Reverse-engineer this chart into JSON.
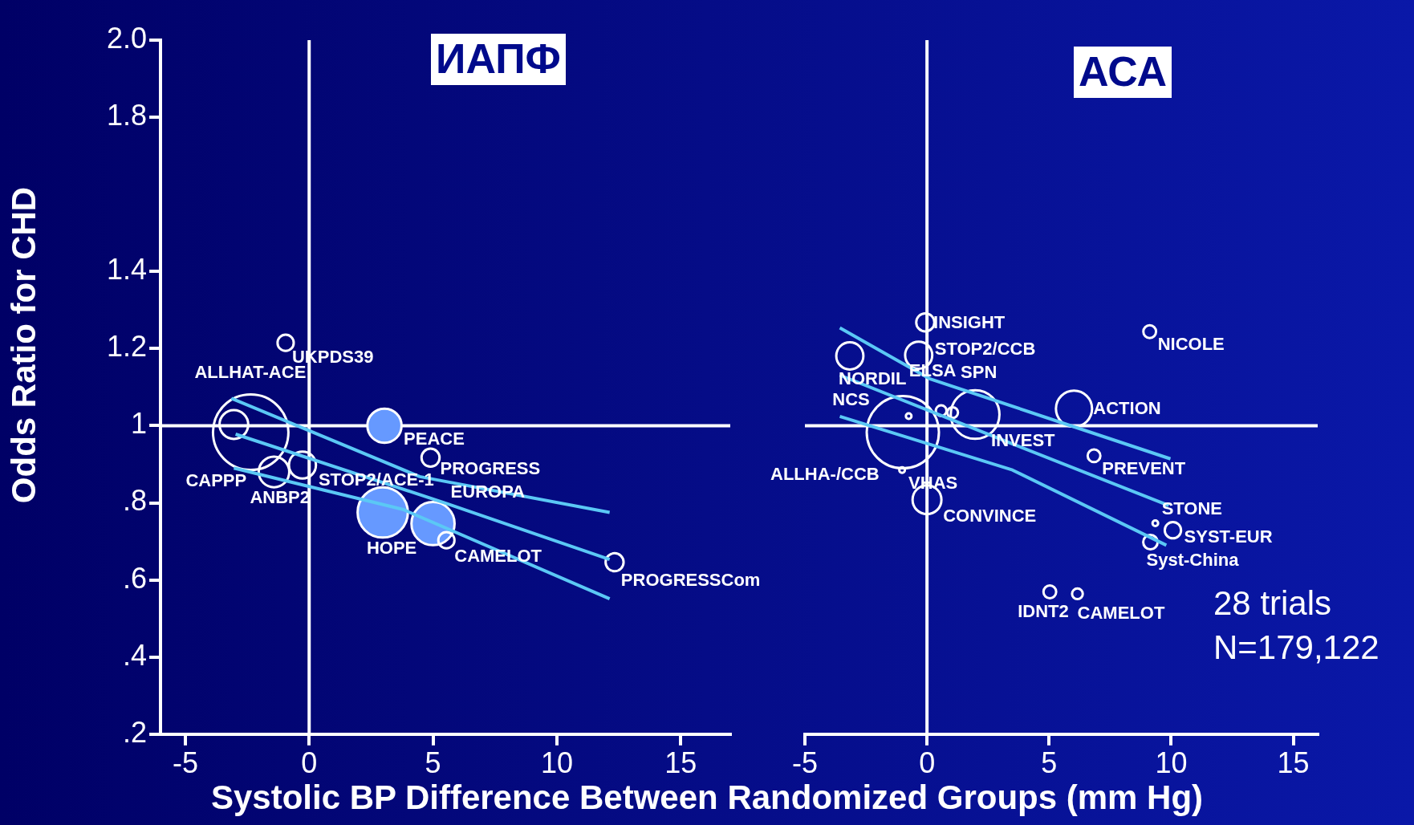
{
  "chart_data": [
    {
      "type": "bubble",
      "title": "ИАПФ",
      "xlabel": "Systolic BP Difference Between Randomized Groups (mm Hg)",
      "ylabel": "Odds Ratio for CHD",
      "xlim": [
        -6,
        17
      ],
      "xticks": [
        -5,
        0,
        5,
        10,
        15
      ],
      "ylim": [
        0.2,
        2.0
      ],
      "yticks": [
        {
          "value": 0.2,
          "label": ".2"
        },
        {
          "value": 0.4,
          "label": ".4"
        },
        {
          "value": 0.6,
          "label": ".6"
        },
        {
          "value": 0.8,
          "label": ".8"
        },
        1,
        1.2,
        1.4,
        1.8,
        {
          "value": 2.0,
          "label": "2.0"
        }
      ],
      "grid": false,
      "legend": false,
      "series": [
        {
          "color": "#ffffff",
          "x": [
            -0.95,
            -2.36,
            -3.04,
            -0.27,
            -1.42,
            4.9,
            5.54,
            12.33
          ],
          "values": [
            1.215,
            0.983,
            1.003,
            0.898,
            0.88,
            0.917,
            0.703,
            0.646
          ],
          "sizes": [
            0.046,
            1,
            0.145,
            0.128,
            0.164,
            0.057,
            0.046,
            0.057
          ]
        },
        {
          "color": "#6699ff",
          "x": [
            3.04,
            2.97,
            5.0
          ],
          "values": [
            1.0,
            0.775,
            0.746
          ],
          "sizes": [
            0.205,
            0.444,
            0.327
          ]
        },
        {
          "type": "line",
          "color": "#5bc8f5",
          "x": [
            -3.14,
            4.46,
            12.13
          ],
          "values": [
            1.071,
            0.868,
            0.775
          ]
        },
        {
          "type": "line",
          "color": "#5bc8f5",
          "x": [
            -2.97,
            5.47,
            12.13
          ],
          "values": [
            0.978,
            0.8,
            0.653
          ]
        },
        {
          "type": "line",
          "color": "#5bc8f5",
          "x": [
            -3.04,
            3.78,
            12.13
          ],
          "values": [
            0.89,
            0.783,
            0.551
          ]
        }
      ],
      "ref_lines": [
        {
          "axis": "y",
          "value": 1,
          "color": "#ffffff"
        },
        {
          "axis": "x",
          "value": 0,
          "color": "#ffffff"
        }
      ],
      "annotations": [
        {
          "text": "UKPDS39",
          "x": -0.95,
          "y": 1.215
        },
        {
          "text": "ALLHAT-ACE",
          "x": -2.36,
          "y": 0.983
        },
        {
          "text": "CAPPP",
          "x": -3.04,
          "y": 1.003
        },
        {
          "text": "STOP2/ACE-1",
          "x": -0.27,
          "y": 0.898
        },
        {
          "text": "ANBP2",
          "x": -1.42,
          "y": 0.88
        },
        {
          "text": "PEACE",
          "x": 3.04,
          "y": 1.0
        },
        {
          "text": "PROGRESS",
          "x": 4.9,
          "y": 0.917
        },
        {
          "text": "HOPE",
          "x": 2.97,
          "y": 0.775
        },
        {
          "text": "EUROPA",
          "x": 5.0,
          "y": 0.746
        },
        {
          "text": "CAMELOT",
          "x": 5.54,
          "y": 0.703
        },
        {
          "text": "PROGRESSCom",
          "x": 12.33,
          "y": 0.646
        }
      ]
    },
    {
      "type": "bubble",
      "title": "АСА",
      "tick_labels": "x",
      "xlim": [
        -5,
        16
      ],
      "xticks": [
        -5,
        0,
        5,
        10,
        15
      ],
      "ylim": [
        0.2,
        2.0
      ],
      "grid": false,
      "legend": false,
      "series": [
        {
          "color": "#ffffff",
          "x": [
            -0.07,
            -3.16,
            -0.34,
            0.58,
            1.05,
            1.97,
            -0.75,
            -0.99,
            -1.02,
            0,
            6.02,
            6.84,
            9.12,
            9.35,
            10.07,
            9.15,
            5.03,
            6.16
          ],
          "values": [
            1.268,
            1.181,
            1.183,
            1.039,
            1.034,
            1.029,
            1.025,
            0.983,
            0.885,
            0.808,
            1.044,
            0.922,
            1.244,
            0.747,
            0.729,
            0.698,
            0.569,
            0.564
          ],
          "sizes": [
            0.063,
            0.141,
            0.141,
            0.022,
            0.022,
            0.455,
            0.006,
            1,
            0.006,
            0.16,
            0.25,
            0.031,
            0.031,
            0.006,
            0.051,
            0.04,
            0.031,
            0.022
          ]
        },
        {
          "type": "line",
          "color": "#5bc8f5",
          "x": [
            -3.57,
            0.1,
            9.97
          ],
          "values": [
            1.254,
            1.122,
            0.914
          ]
        },
        {
          "type": "line",
          "color": "#5bc8f5",
          "x": [
            -3.57,
            3.5,
            9.9
          ],
          "values": [
            1.131,
            0.953,
            0.793
          ]
        },
        {
          "type": "line",
          "color": "#5bc8f5",
          "x": [
            -3.57,
            3.5,
            9.8
          ],
          "values": [
            1.024,
            0.885,
            0.69
          ]
        }
      ],
      "ref_lines": [
        {
          "axis": "y",
          "value": 1,
          "color": "#ffffff"
        },
        {
          "axis": "x",
          "value": 0,
          "color": "#ffffff"
        }
      ],
      "annotations": [
        {
          "text": "INSIGHT",
          "x": -0.07,
          "y": 1.268
        },
        {
          "text": "NORDIL",
          "x": -3.16,
          "y": 1.181
        },
        {
          "text": "STOP2/CCB",
          "x": -0.34,
          "y": 1.183
        },
        {
          "text": "ELSA",
          "x": 0.58,
          "y": 1.039
        },
        {
          "text": "SPN",
          "x": 1.05,
          "y": 1.034
        },
        {
          "text": "INVEST",
          "x": 1.97,
          "y": 1.029
        },
        {
          "text": "NCS",
          "x": -0.75,
          "y": 1.025
        },
        {
          "text": "ALLHA-/CCB",
          "x": -0.99,
          "y": 0.983
        },
        {
          "text": "VHAS",
          "x": -1.02,
          "y": 0.885
        },
        {
          "text": "CONVINCE",
          "x": 0,
          "y": 0.808
        },
        {
          "text": "ACTION",
          "x": 6.02,
          "y": 1.044
        },
        {
          "text": "PREVENT",
          "x": 6.84,
          "y": 0.922
        },
        {
          "text": "NICOLE",
          "x": 9.12,
          "y": 1.244
        },
        {
          "text": "STONE",
          "x": 9.35,
          "y": 0.747
        },
        {
          "text": "SYST-EUR",
          "x": 10.07,
          "y": 0.729
        },
        {
          "text": "Syst-China",
          "x": 9.15,
          "y": 0.698
        },
        {
          "text": "IDNT2",
          "x": 5.03,
          "y": 0.569
        },
        {
          "text": "CAMELOT",
          "x": 6.16,
          "y": 0.564
        },
        "28 trials",
        "N=179,122"
      ]
    }
  ]
}
